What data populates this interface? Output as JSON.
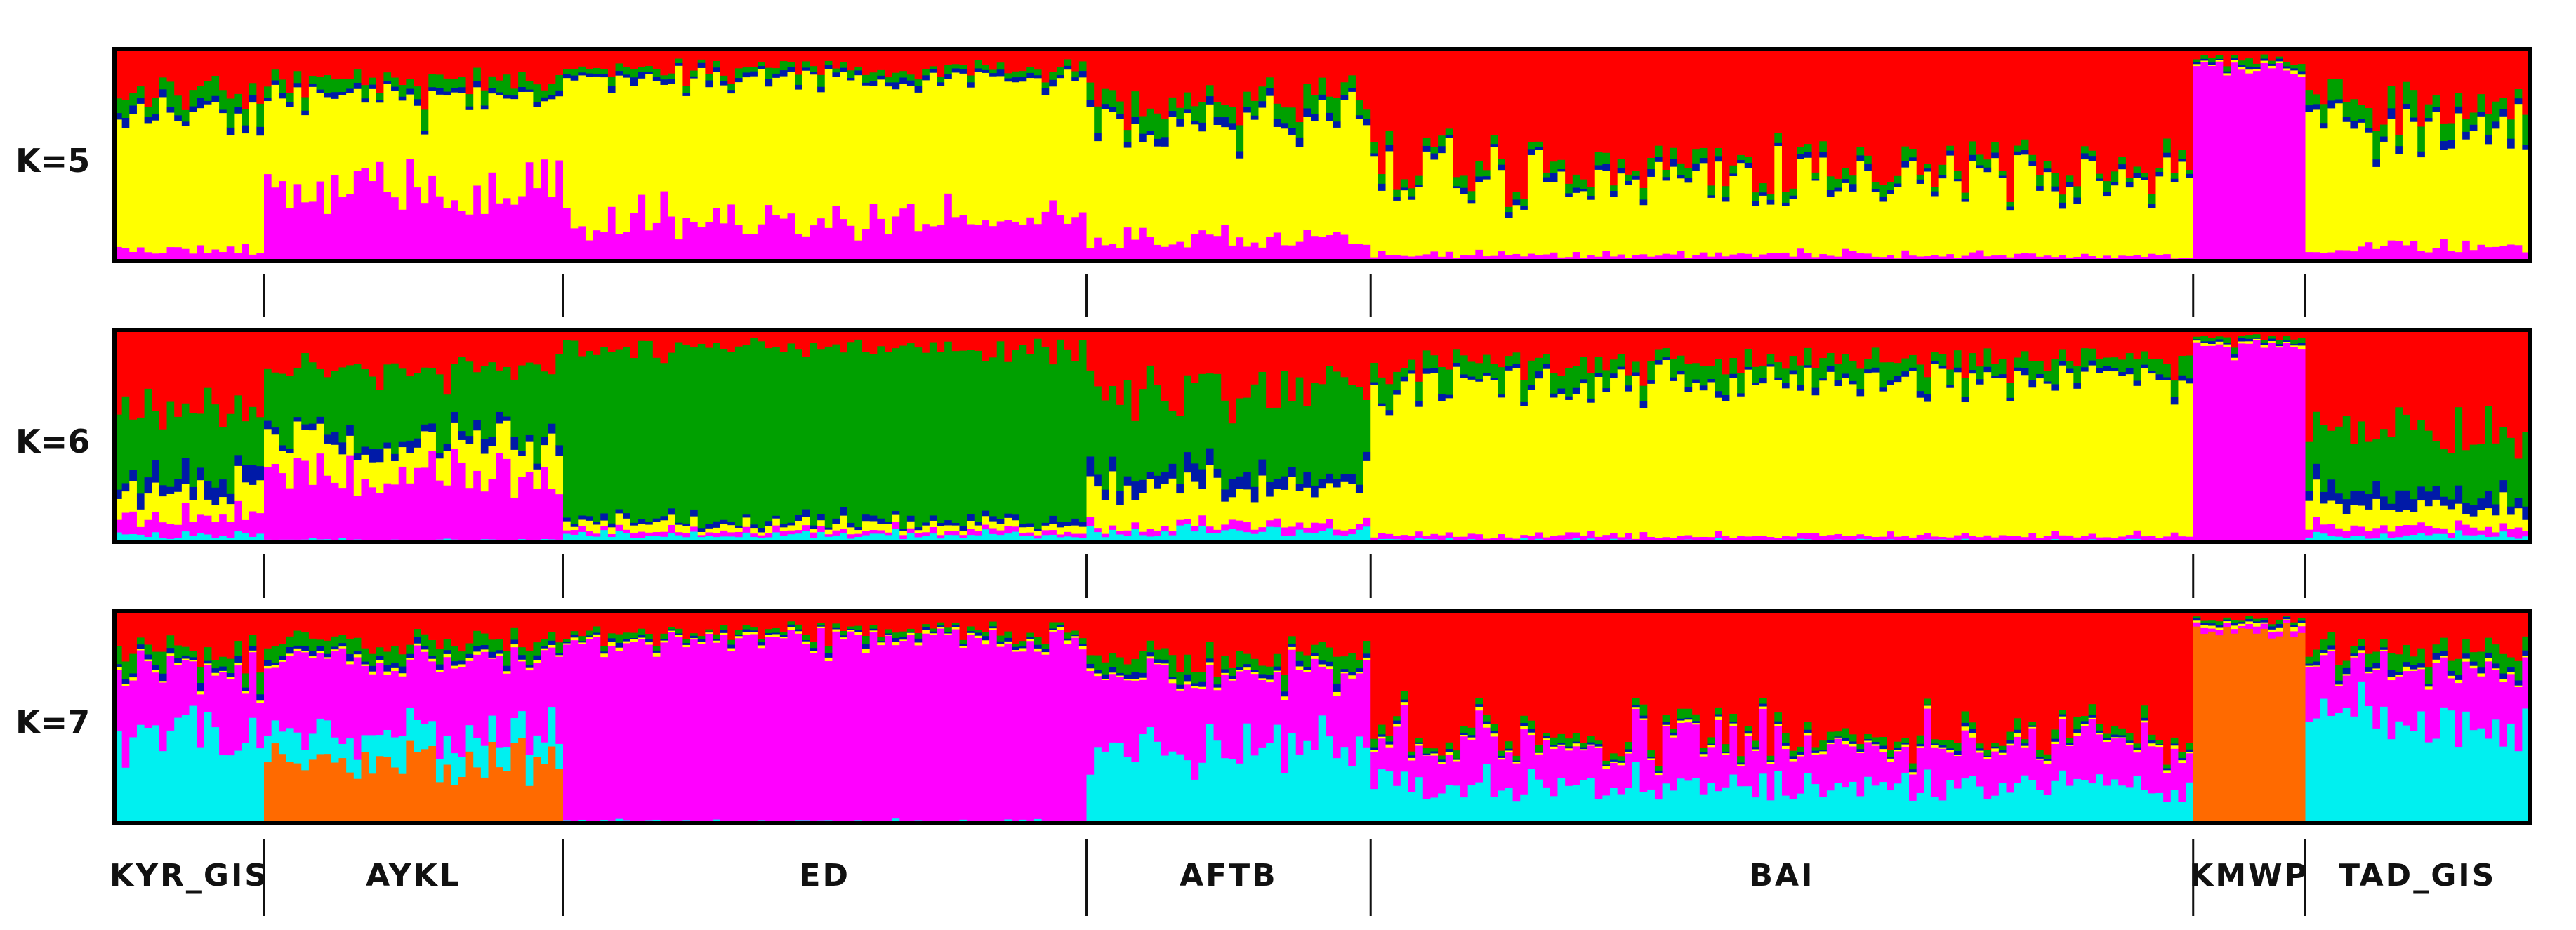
{
  "chart_data": {
    "type": "bar",
    "subtype": "stacked admixture (STRUCTURE) plot",
    "panels": [
      {
        "k_label": "K=5",
        "clusters": [
          "magenta",
          "yellow",
          "blue",
          "green",
          "red"
        ],
        "groups": [
          {
            "population": "KYR_GIS",
            "n": 20,
            "proportions": {
              "magenta": 0.05,
              "yellow": 0.62,
              "blue": 0.03,
              "green": 0.08,
              "red": 0.22
            }
          },
          {
            "population": "AYKL",
            "n": 40,
            "proportions": {
              "magenta": 0.35,
              "yellow": 0.42,
              "blue": 0.02,
              "green": 0.06,
              "red": 0.15
            }
          },
          {
            "population": "ED",
            "n": 70,
            "proportions": {
              "magenta": 0.2,
              "yellow": 0.66,
              "blue": 0.02,
              "green": 0.03,
              "red": 0.09
            }
          },
          {
            "population": "AFTB",
            "n": 38,
            "proportions": {
              "magenta": 0.1,
              "yellow": 0.56,
              "blue": 0.03,
              "green": 0.08,
              "red": 0.23
            }
          },
          {
            "population": "BAI",
            "n": 110,
            "proportions": {
              "magenta": 0.03,
              "yellow": 0.34,
              "blue": 0.02,
              "green": 0.04,
              "red": 0.57
            }
          },
          {
            "population": "KMWP",
            "n": 15,
            "proportions": {
              "magenta": 0.91,
              "yellow": 0.01,
              "blue": 0.01,
              "green": 0.02,
              "red": 0.05
            }
          },
          {
            "population": "TAD_GIS",
            "n": 30,
            "proportions": {
              "magenta": 0.06,
              "yellow": 0.58,
              "blue": 0.03,
              "green": 0.08,
              "red": 0.25
            }
          }
        ]
      },
      {
        "k_label": "K=6",
        "clusters": [
          "cyan",
          "magenta",
          "yellow",
          "blue",
          "green",
          "red"
        ],
        "groups": [
          {
            "population": "KYR_GIS",
            "n": 20,
            "proportions": {
              "cyan": 0.03,
              "magenta": 0.08,
              "yellow": 0.12,
              "blue": 0.07,
              "green": 0.33,
              "red": 0.37
            }
          },
          {
            "population": "AYKL",
            "n": 40,
            "proportions": {
              "cyan": 0.01,
              "magenta": 0.3,
              "yellow": 0.15,
              "blue": 0.04,
              "green": 0.33,
              "red": 0.17
            }
          },
          {
            "population": "ED",
            "n": 70,
            "proportions": {
              "cyan": 0.03,
              "magenta": 0.02,
              "yellow": 0.03,
              "blue": 0.02,
              "green": 0.82,
              "red": 0.08
            }
          },
          {
            "population": "AFTB",
            "n": 38,
            "proportions": {
              "cyan": 0.05,
              "magenta": 0.03,
              "yellow": 0.18,
              "blue": 0.06,
              "green": 0.38,
              "red": 0.3
            }
          },
          {
            "population": "BAI",
            "n": 110,
            "proportions": {
              "cyan": 0.01,
              "magenta": 0.02,
              "yellow": 0.72,
              "blue": 0.02,
              "green": 0.08,
              "red": 0.15
            }
          },
          {
            "population": "KMWP",
            "n": 15,
            "proportions": {
              "cyan": 0.0,
              "magenta": 0.92,
              "yellow": 0.01,
              "blue": 0.01,
              "green": 0.02,
              "red": 0.04
            }
          },
          {
            "population": "TAD_GIS",
            "n": 30,
            "proportions": {
              "cyan": 0.03,
              "magenta": 0.04,
              "yellow": 0.1,
              "blue": 0.06,
              "green": 0.3,
              "red": 0.47
            }
          }
        ]
      },
      {
        "k_label": "K=7",
        "clusters": [
          "orange",
          "cyan",
          "magenta",
          "yellow",
          "blue",
          "green",
          "red"
        ],
        "groups": [
          {
            "population": "KYR_GIS",
            "n": 20,
            "proportions": {
              "orange": 0.0,
              "cyan": 0.45,
              "magenta": 0.28,
              "yellow": 0.01,
              "blue": 0.02,
              "green": 0.06,
              "red": 0.18
            }
          },
          {
            "population": "AYKL",
            "n": 40,
            "proportions": {
              "orange": 0.28,
              "cyan": 0.12,
              "magenta": 0.38,
              "yellow": 0.01,
              "blue": 0.02,
              "green": 0.05,
              "red": 0.14
            }
          },
          {
            "population": "ED",
            "n": 70,
            "proportions": {
              "orange": 0.0,
              "cyan": 0.01,
              "magenta": 0.86,
              "yellow": 0.01,
              "blue": 0.01,
              "green": 0.02,
              "red": 0.09
            }
          },
          {
            "population": "AFTB",
            "n": 38,
            "proportions": {
              "orange": 0.0,
              "cyan": 0.35,
              "magenta": 0.34,
              "yellow": 0.01,
              "blue": 0.02,
              "green": 0.06,
              "red": 0.22
            }
          },
          {
            "population": "BAI",
            "n": 110,
            "proportions": {
              "orange": 0.0,
              "cyan": 0.18,
              "magenta": 0.2,
              "yellow": 0.01,
              "blue": 0.01,
              "green": 0.03,
              "red": 0.57
            }
          },
          {
            "population": "KMWP",
            "n": 15,
            "proportions": {
              "orange": 0.91,
              "cyan": 0.0,
              "magenta": 0.02,
              "yellow": 0.01,
              "blue": 0.01,
              "green": 0.01,
              "red": 0.04
            }
          },
          {
            "population": "TAD_GIS",
            "n": 30,
            "proportions": {
              "orange": 0.0,
              "cyan": 0.48,
              "magenta": 0.24,
              "yellow": 0.01,
              "blue": 0.02,
              "green": 0.06,
              "red": 0.19
            }
          }
        ]
      }
    ],
    "population_labels": [
      "KYR_GIS",
      "AYKL",
      "ED",
      "AFTB",
      "BAI",
      "KMWP",
      "TAD_GIS"
    ],
    "ylim": [
      0,
      1
    ],
    "grid": false,
    "legend": "none"
  },
  "colors": {
    "red": "#ff0000",
    "green": "#00a000",
    "blue": "#001aa8",
    "yellow": "#ffff00",
    "magenta": "#ff00ff",
    "cyan": "#00f0f0",
    "orange": "#ff6a00"
  }
}
